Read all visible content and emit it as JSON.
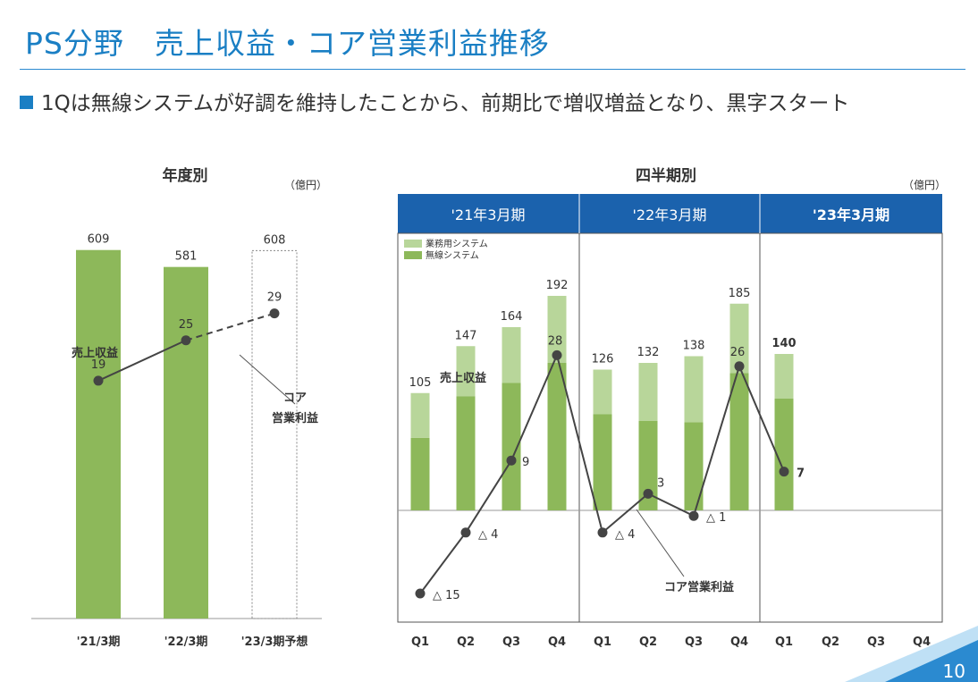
{
  "header": {
    "title": "PS分野　売上収益・コア営業利益推移",
    "bullet": "1Qは無線システムが好調を維持したことから、前期比で増収増益となり、黒字スタート"
  },
  "page_number": "10",
  "colors": {
    "accent": "#1a7fc4",
    "header_band": "#1b62ad",
    "bar_main": "#8db85a",
    "bar_light": "#b8d69a",
    "line": "#444444"
  },
  "chart_data": [
    {
      "type": "bar",
      "title": "年度別",
      "unit": "（億円）",
      "categories": [
        "'21/3期",
        "'22/3期",
        "'23/3期予想"
      ],
      "series": [
        {
          "name": "売上収益",
          "values": [
            609,
            581,
            608
          ],
          "forecast": [
            false,
            false,
            true
          ]
        },
        {
          "name": "コア営業利益",
          "values": [
            19,
            25,
            29
          ],
          "forecast": [
            false,
            false,
            true
          ]
        }
      ],
      "annotations": {
        "revenue_label": "売上収益",
        "profit_label": "コア\n営業利益"
      }
    },
    {
      "type": "bar",
      "title": "四半期別",
      "unit": "（億円）",
      "groups": [
        "'21年3月期",
        "'22年3月期",
        "'23年3月期"
      ],
      "categories": [
        "Q1",
        "Q2",
        "Q3",
        "Q4",
        "Q1",
        "Q2",
        "Q3",
        "Q4",
        "Q1",
        "Q2",
        "Q3",
        "Q4"
      ],
      "legend": [
        "業務用システム",
        "無線システム"
      ],
      "totals": [
        105,
        147,
        164,
        192,
        126,
        132,
        138,
        185,
        140,
        null,
        null,
        null
      ],
      "total_labels": [
        "105",
        "147",
        "164",
        "192",
        "126",
        "132",
        "138",
        "185",
        "140",
        "",
        "",
        ""
      ],
      "series": [
        {
          "name": "業務用システム",
          "values": [
            40,
            45,
            50,
            60,
            40,
            52,
            59,
            62,
            40,
            null,
            null,
            null
          ]
        },
        {
          "name": "無線システム",
          "values": [
            65,
            102,
            114,
            132,
            86,
            80,
            79,
            123,
            100,
            null,
            null,
            null
          ]
        },
        {
          "name": "コア営業利益",
          "values": [
            -15,
            -4,
            9,
            28,
            -4,
            3,
            -1,
            26,
            7,
            null,
            null,
            null
          ]
        }
      ],
      "profit_labels": [
        "△ 15",
        "△ 4",
        "9",
        "28",
        "△ 4",
        "3",
        "△ 1",
        "26",
        "7",
        "",
        "",
        ""
      ],
      "annotations": {
        "revenue_label": "売上収益",
        "profit_label": "コア営業利益"
      }
    }
  ]
}
